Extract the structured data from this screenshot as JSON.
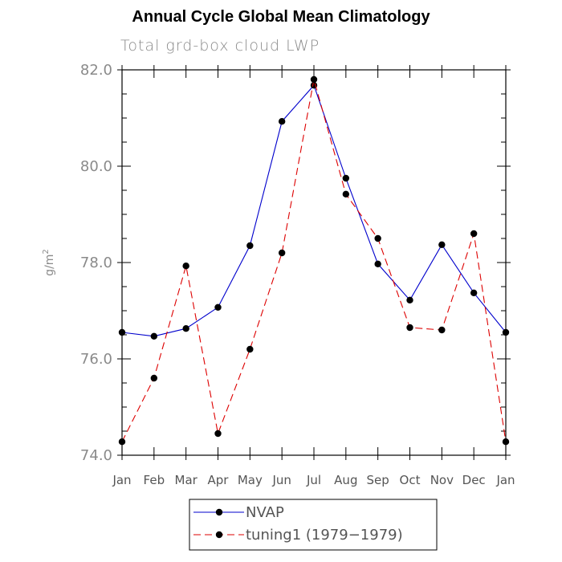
{
  "chart_data": {
    "type": "line",
    "title": "Annual Cycle Global Mean Climatology",
    "subtitle": "Total grd-box cloud LWP",
    "ylabel": "g/m",
    "ylabel_superscript": "2",
    "xlabel": "",
    "categories": [
      "Jan",
      "Feb",
      "Mar",
      "Apr",
      "May",
      "Jun",
      "Jul",
      "Aug",
      "Sep",
      "Oct",
      "Nov",
      "Dec",
      "Jan"
    ],
    "ylim": [
      74.0,
      82.0
    ],
    "yticks": [
      "74.0",
      "76.0",
      "78.0",
      "80.0",
      "82.0"
    ],
    "series": [
      {
        "name": "NVAP",
        "color": "#0000cc",
        "dash": "solid",
        "values": [
          76.55,
          76.47,
          76.63,
          77.07,
          78.35,
          80.93,
          81.68,
          79.75,
          77.97,
          77.22,
          78.37,
          77.37,
          76.55
        ]
      },
      {
        "name": "tuning1 (1979-1979)",
        "color": "#dd0000",
        "dash": "dashed",
        "values": [
          74.28,
          75.6,
          77.93,
          74.45,
          76.2,
          78.2,
          81.8,
          79.42,
          78.5,
          76.65,
          76.6,
          78.6,
          74.28
        ]
      }
    ],
    "legend_position": "bottom-center",
    "legend_labels": [
      "NVAP",
      "tuning1 (1979−1979)"
    ]
  }
}
